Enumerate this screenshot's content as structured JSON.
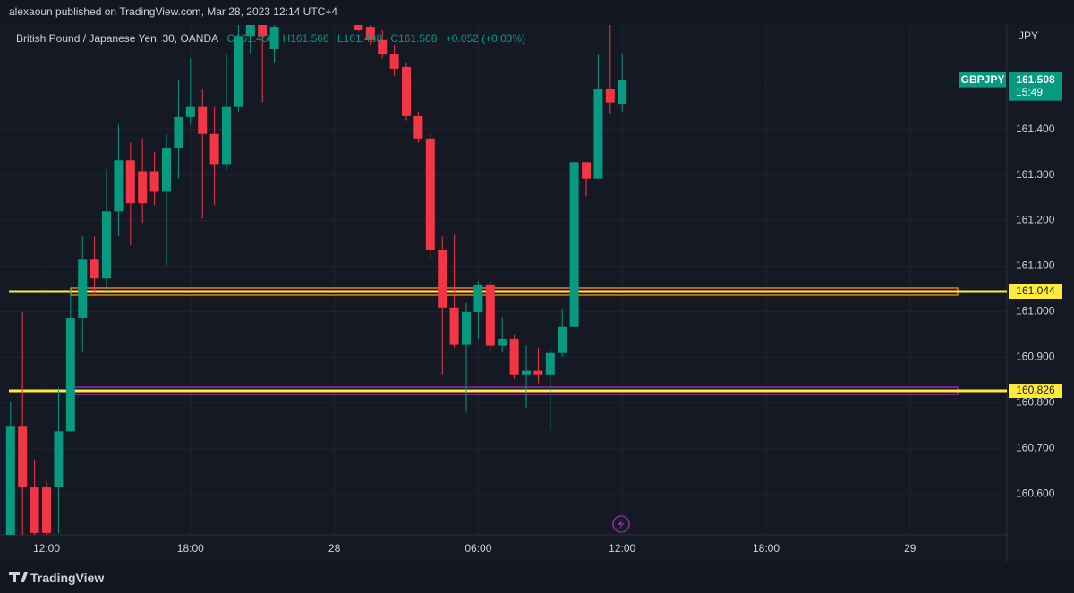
{
  "header": {
    "publisher": "alexaoun published on TradingView.com, Mar 28, 2023 12:14 UTC+4",
    "footer": "TradingView"
  },
  "chart_data": {
    "type": "candlestick",
    "title": "British Pound / Japanese Yen, 30, OANDA",
    "ohlc_summary": [
      "O161.456",
      "H161.566",
      "L161.438",
      "C161.508",
      "+0.052 (+0.03%)"
    ],
    "y_unit": "JPY",
    "categories": [
      null,
      null,
      null,
      "12:00",
      null,
      null,
      null,
      null,
      null,
      null,
      null,
      null,
      null,
      null,
      null,
      "18:00",
      null,
      null,
      null,
      null,
      null,
      null,
      null,
      null,
      null,
      null,
      null,
      "28",
      null,
      null,
      null,
      null,
      null,
      null,
      null,
      null,
      null,
      null,
      null,
      "06:00",
      null,
      null,
      null,
      null,
      null,
      null,
      null,
      null,
      null,
      null,
      null,
      "12:00",
      null,
      null,
      null,
      null,
      null,
      null,
      null,
      null,
      null,
      null,
      null,
      "18:00",
      null,
      null,
      null,
      null,
      null,
      null,
      null,
      null,
      null,
      null,
      null,
      "29",
      null,
      null,
      null,
      null,
      null,
      null,
      null,
      null
    ],
    "series": [
      {
        "name": "GBPJPY",
        "up_color": "#089981",
        "down_color": "#f23645",
        "open": [
          160.51,
          160.749,
          160.614,
          160.614,
          160.614,
          160.737,
          160.987,
          161.114,
          161.073,
          161.22,
          161.332,
          161.308,
          161.308,
          161.263,
          161.359,
          161.427,
          161.449,
          161.39,
          161.324,
          161.449,
          161.605,
          161.629,
          161.576,
          null,
          null,
          null,
          null,
          null,
          null,
          161.629,
          161.625,
          161.596,
          161.566,
          161.537,
          161.429,
          161.38,
          161.136,
          161.009,
          160.927,
          160.999,
          161.058,
          160.925,
          160.94,
          160.862,
          160.87,
          160.862,
          160.909,
          160.966,
          161.328,
          161.292,
          161.488,
          161.456,
          null,
          null,
          null,
          null,
          null,
          null,
          null,
          null,
          null,
          null,
          null,
          null,
          null,
          null,
          null,
          null,
          null,
          null,
          null,
          null,
          null,
          null,
          null,
          null,
          null,
          null,
          null,
          null,
          null,
          null,
          null,
          null
        ],
        "high": [
          160.8,
          160.999,
          160.676,
          160.627,
          160.833,
          161.048,
          161.165,
          161.165,
          161.312,
          161.41,
          161.371,
          161.38,
          161.351,
          161.39,
          161.508,
          161.556,
          161.488,
          161.449,
          161.566,
          161.629,
          161.629,
          161.629,
          161.629,
          null,
          null,
          null,
          null,
          null,
          null,
          161.629,
          161.629,
          161.619,
          161.586,
          161.547,
          161.439,
          161.39,
          161.165,
          161.169,
          161.019,
          161.067,
          161.067,
          160.989,
          160.95,
          160.925,
          160.921,
          160.921,
          161.005,
          161.328,
          161.328,
          161.566,
          161.629,
          161.566,
          null,
          null,
          null,
          null,
          null,
          null,
          null,
          null,
          null,
          null,
          null,
          null,
          null,
          null,
          null,
          null,
          null,
          null,
          null,
          null,
          null,
          null,
          null,
          null,
          null,
          null,
          null,
          null,
          null,
          null,
          null,
          null
        ],
        "low": [
          160.51,
          160.51,
          160.51,
          160.51,
          160.514,
          160.737,
          160.911,
          161.038,
          161.038,
          161.165,
          161.146,
          161.195,
          161.234,
          161.101,
          161.292,
          161.41,
          161.204,
          161.234,
          161.312,
          161.439,
          161.566,
          161.459,
          161.547,
          null,
          null,
          null,
          null,
          null,
          null,
          161.615,
          161.586,
          161.556,
          161.517,
          161.42,
          161.371,
          161.116,
          160.862,
          160.921,
          160.778,
          160.94,
          160.911,
          160.911,
          160.852,
          160.788,
          160.843,
          160.739,
          160.901,
          160.966,
          161.253,
          161.292,
          161.435,
          161.438,
          null,
          null,
          null,
          null,
          null,
          null,
          null,
          null,
          null,
          null,
          null,
          null,
          null,
          null,
          null,
          null,
          null,
          null,
          null,
          null,
          null,
          null,
          null,
          null,
          null,
          null,
          null,
          null,
          null,
          null,
          null,
          null
        ],
        "close": [
          160.749,
          160.614,
          160.514,
          160.514,
          160.737,
          160.987,
          161.114,
          161.073,
          161.22,
          161.332,
          161.238,
          161.238,
          161.263,
          161.359,
          161.427,
          161.449,
          161.39,
          161.324,
          161.449,
          161.605,
          161.629,
          161.605,
          161.625,
          null,
          null,
          null,
          null,
          null,
          null,
          161.619,
          161.596,
          161.566,
          161.533,
          161.429,
          161.38,
          161.136,
          161.009,
          160.927,
          160.999,
          161.058,
          160.925,
          160.94,
          160.862,
          160.87,
          160.862,
          160.909,
          160.966,
          161.328,
          161.292,
          161.488,
          161.459,
          161.508,
          null,
          null,
          null,
          null,
          null,
          null,
          null,
          null,
          null,
          null,
          null,
          null,
          null,
          null,
          null,
          null,
          null,
          null,
          null,
          null,
          null,
          null,
          null,
          null,
          null,
          null,
          null,
          null,
          null,
          null,
          null,
          null
        ]
      }
    ],
    "last_price": {
      "value": 161.508,
      "countdown": "15:49"
    },
    "hlines": [
      {
        "value": 161.044,
        "color": "#ffeb3b",
        "zone_color": "#f57c00"
      },
      {
        "value": 160.826,
        "color": "#ffeb3b",
        "zone_color": "#9c27b0"
      }
    ],
    "ylim": [
      160.51,
      161.629
    ],
    "yticks": [
      {
        "value": 160.6,
        "label": "160.600"
      },
      {
        "value": 160.7,
        "label": "160.700"
      },
      {
        "value": 160.8,
        "label": "160.800"
      },
      {
        "value": 160.9,
        "label": "160.900"
      },
      {
        "value": 161.0,
        "label": "161.000"
      },
      {
        "value": 161.1,
        "label": "161.100"
      },
      {
        "value": 161.2,
        "label": "161.200"
      },
      {
        "value": 161.3,
        "label": "161.300"
      },
      {
        "value": 161.4,
        "label": "161.400"
      }
    ],
    "grid": true
  }
}
